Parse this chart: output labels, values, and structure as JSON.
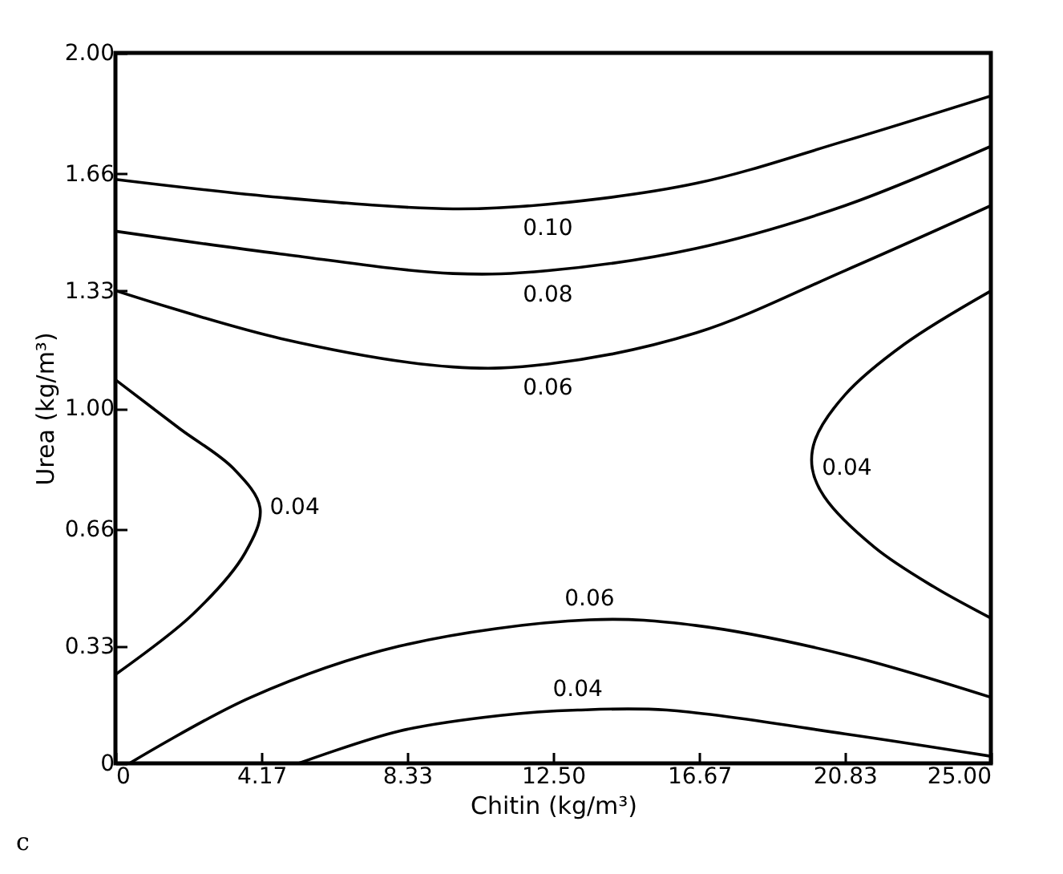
{
  "chart_data": {
    "type": "line",
    "xlabel": "Chitin (kg/m³)",
    "ylabel": "Urea (kg/m³)",
    "xlim": [
      0,
      25
    ],
    "ylim": [
      0,
      2
    ],
    "xticks": [
      0,
      4.17,
      8.33,
      {
        "value": 12.5,
        "label": "12.50"
      },
      16.67,
      20.83,
      {
        "value": 25,
        "label": "25.00"
      }
    ],
    "yticks": [
      0,
      0.33,
      0.66,
      {
        "value": 1,
        "label": "1.00"
      },
      1.33,
      1.66,
      {
        "value": 2,
        "label": "2.00"
      }
    ],
    "grid": false,
    "legend": false,
    "marker": "none",
    "line_style": "solid",
    "series": [
      {
        "name": "0.10",
        "color": "#000000",
        "x": [
          0,
          4.72,
          9.64,
          12.35,
          16.59,
          20.83,
          25
        ],
        "values": [
          1.644,
          1.593,
          1.561,
          1.574,
          1.633,
          1.752,
          1.879
        ]
      },
      {
        "name": "0.08",
        "color": "#000000",
        "x": [
          0,
          4.72,
          9.64,
          12.35,
          16.59,
          20.83,
          25
        ],
        "values": [
          1.498,
          1.434,
          1.379,
          1.387,
          1.45,
          1.57,
          1.737
        ]
      },
      {
        "name": "0.06",
        "color": "#000000",
        "x": [
          0,
          4.72,
          9.64,
          12.35,
          16.59,
          20.83,
          25
        ],
        "values": [
          1.331,
          1.196,
          1.116,
          1.124,
          1.212,
          1.387,
          1.57
        ]
      },
      {
        "name": "0.04",
        "color": "#000000",
        "x": [
          0,
          1.84,
          3.37,
          4.13,
          3.7,
          2.18,
          0
        ],
        "values": [
          1.08,
          0.942,
          0.83,
          0.719,
          0.592,
          0.417,
          0.25
        ]
      },
      {
        "name": "0.04",
        "color": "#000000",
        "x": [
          25,
          22.53,
          20.83,
          19.98,
          19.9,
          20.24,
          21.68,
          23.37,
          25
        ],
        "values": [
          1.33,
          1.18,
          1.037,
          0.91,
          0.83,
          0.751,
          0.608,
          0.497,
          0.409
        ]
      },
      {
        "name": "0.06",
        "color": "#000000",
        "x": [
          0.4,
          3.87,
          8.11,
          13.54,
          16.59,
          20.83,
          25
        ],
        "values": [
          0,
          0.186,
          0.33,
          0.404,
          0.388,
          0.306,
          0.186
        ]
      },
      {
        "name": "0.04",
        "color": "#000000",
        "x": [
          5.23,
          8.11,
          11.0,
          13.2,
          15.75,
          20.83,
          25
        ],
        "values": [
          0,
          0.091,
          0.135,
          0.15,
          0.15,
          0.083,
          0.02
        ]
      }
    ],
    "annotations": [
      "c"
    ]
  }
}
